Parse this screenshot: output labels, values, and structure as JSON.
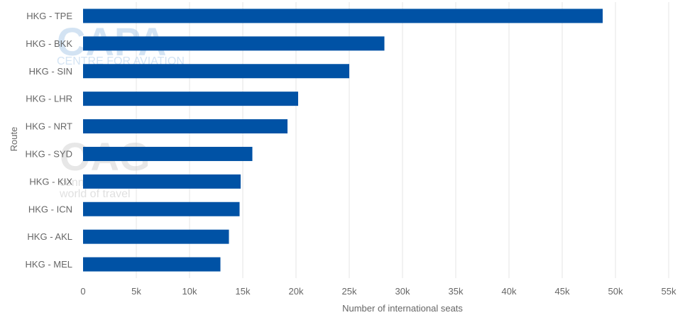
{
  "chart_data": {
    "type": "bar",
    "orientation": "horizontal",
    "categories": [
      "HKG - TPE",
      "HKG - BKK",
      "HKG - SIN",
      "HKG - LHR",
      "HKG - NRT",
      "HKG - SYD",
      "HKG - KIX",
      "HKG - ICN",
      "HKG - AKL",
      "HKG - MEL"
    ],
    "values": [
      48800,
      28300,
      25000,
      20200,
      19200,
      15900,
      14800,
      14700,
      13700,
      12900
    ],
    "xlabel": "Number of international seats",
    "ylabel": "Route",
    "xlim": [
      0,
      55000
    ],
    "x_ticks": [
      0,
      5000,
      10000,
      15000,
      20000,
      25000,
      30000,
      35000,
      40000,
      45000,
      50000,
      55000
    ],
    "x_tick_labels": [
      "0",
      "5k",
      "10k",
      "15k",
      "20k",
      "25k",
      "30k",
      "35k",
      "40k",
      "45k",
      "50k",
      "55k"
    ],
    "grid": "vertical",
    "bar_color": "#0052a5",
    "grid_color": "#e6e6e6"
  },
  "watermarks": {
    "capa_logo": "CAPA",
    "capa_sub": "CENTRE FOR AVIATION",
    "oag_logo": "OAG",
    "oag_line1": "conn",
    "oag_line2": "world of travel",
    "capa_color": "#9ec3e6",
    "oag_color": "#cccccc"
  }
}
